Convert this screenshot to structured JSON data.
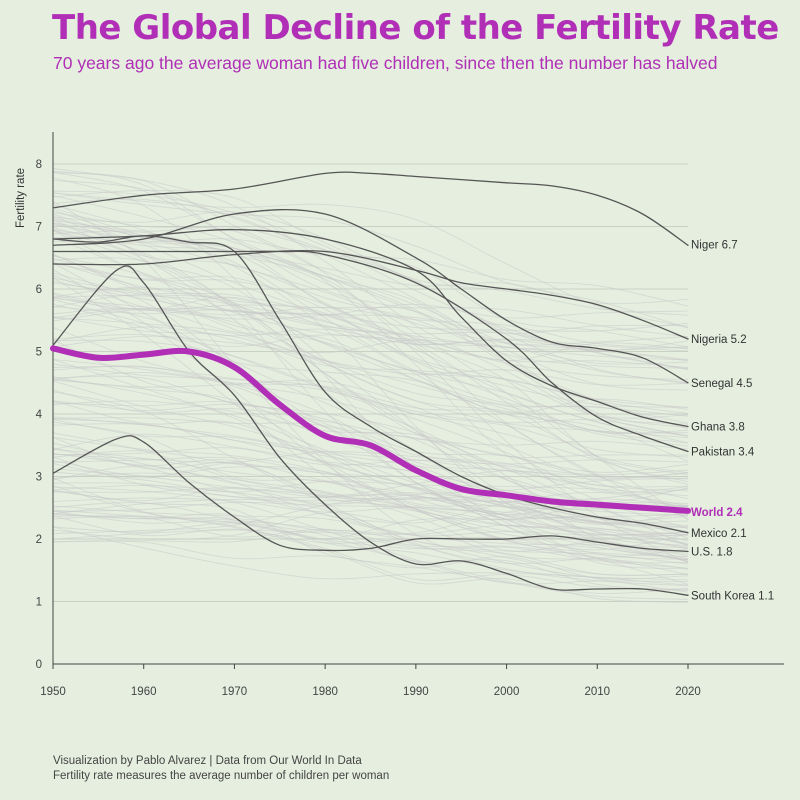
{
  "header": {
    "title": "The Global Decline of the Fertility Rate",
    "subtitle": "70 years ago the average woman had five children, since then the number has halved"
  },
  "footer": {
    "credit": "Visualization by Pablo Alvarez | Data from Our World In Data",
    "note": "Fertility rate measures the average number of children per woman"
  },
  "colors": {
    "background": "#e5eedf",
    "highlight": "#b02fb6",
    "country_line": "#555555",
    "background_lines": "#c9c9c9",
    "grid": "#bfc7bb"
  },
  "chart_data": {
    "type": "line",
    "title": "The Global Decline of the Fertility Rate",
    "subtitle": "70 years ago the average woman had five children, since then the number has halved",
    "xlabel": "",
    "ylabel": "Fertility rate",
    "xlim": [
      1950,
      2020
    ],
    "ylim": [
      0,
      8
    ],
    "xticks": [
      1950,
      1960,
      1970,
      1980,
      1990,
      2000,
      2010,
      2020
    ],
    "yticks": [
      0,
      1,
      2,
      3,
      4,
      5,
      6,
      7,
      8
    ],
    "grid": "horizontal",
    "background_series_note": "many unlabeled grey country lines",
    "series": [
      {
        "name": "Niger",
        "label": "Niger 6.7",
        "style": "country",
        "x": [
          1950,
          1960,
          1970,
          1980,
          1985,
          1990,
          2000,
          2005,
          2010,
          2015,
          2020
        ],
        "y": [
          7.3,
          7.5,
          7.6,
          7.85,
          7.85,
          7.8,
          7.7,
          7.65,
          7.5,
          7.2,
          6.7
        ]
      },
      {
        "name": "Nigeria",
        "label": "Nigeria 5.2",
        "style": "country",
        "x": [
          1950,
          1960,
          1970,
          1980,
          1990,
          1995,
          2000,
          2005,
          2010,
          2015,
          2020
        ],
        "y": [
          6.4,
          6.4,
          6.55,
          6.6,
          6.3,
          6.1,
          6.0,
          5.9,
          5.75,
          5.5,
          5.2
        ]
      },
      {
        "name": "Senegal",
        "label": "Senegal 4.5",
        "style": "country",
        "x": [
          1950,
          1960,
          1970,
          1980,
          1990,
          1995,
          2000,
          2005,
          2010,
          2015,
          2020
        ],
        "y": [
          6.7,
          6.8,
          7.2,
          7.2,
          6.5,
          6.0,
          5.5,
          5.15,
          5.05,
          4.9,
          4.5
        ]
      },
      {
        "name": "Ghana",
        "label": "Ghana 3.8",
        "style": "country",
        "x": [
          1950,
          1960,
          1970,
          1980,
          1990,
          1995,
          2000,
          2005,
          2010,
          2015,
          2020
        ],
        "y": [
          6.8,
          6.85,
          6.95,
          6.8,
          6.3,
          5.55,
          4.85,
          4.45,
          4.2,
          3.95,
          3.8
        ]
      },
      {
        "name": "Pakistan",
        "label": "Pakistan 3.4",
        "style": "country",
        "x": [
          1950,
          1960,
          1970,
          1975,
          1980,
          1990,
          2000,
          2005,
          2010,
          2015,
          2020
        ],
        "y": [
          6.6,
          6.6,
          6.6,
          6.6,
          6.55,
          6.1,
          5.2,
          4.5,
          3.95,
          3.65,
          3.4
        ]
      },
      {
        "name": "Mexico",
        "label": "Mexico 2.1",
        "style": "country",
        "x": [
          1950,
          1955,
          1960,
          1965,
          1970,
          1975,
          1980,
          1985,
          1990,
          1995,
          2000,
          2005,
          2010,
          2015,
          2020
        ],
        "y": [
          6.8,
          6.75,
          6.85,
          6.75,
          6.6,
          5.5,
          4.35,
          3.8,
          3.4,
          3.0,
          2.7,
          2.5,
          2.35,
          2.25,
          2.1
        ]
      },
      {
        "name": "U.S.",
        "label": "U.S. 1.8",
        "style": "country",
        "x": [
          1950,
          1957,
          1960,
          1965,
          1970,
          1975,
          1980,
          1985,
          1990,
          1995,
          2000,
          2005,
          2010,
          2015,
          2020
        ],
        "y": [
          3.05,
          3.6,
          3.55,
          2.9,
          2.35,
          1.9,
          1.82,
          1.85,
          2.0,
          2.0,
          2.0,
          2.05,
          1.95,
          1.85,
          1.8
        ]
      },
      {
        "name": "South Korea",
        "label": "South Korea 1.1",
        "style": "country",
        "x": [
          1950,
          1957,
          1960,
          1965,
          1970,
          1975,
          1980,
          1985,
          1990,
          1995,
          2000,
          2005,
          2010,
          2015,
          2020
        ],
        "y": [
          5.1,
          6.3,
          6.1,
          5.0,
          4.3,
          3.3,
          2.55,
          1.95,
          1.6,
          1.65,
          1.45,
          1.2,
          1.2,
          1.2,
          1.1
        ]
      },
      {
        "name": "World",
        "label": "World 2.4",
        "style": "highlight",
        "x": [
          1950,
          1955,
          1960,
          1965,
          1970,
          1975,
          1980,
          1985,
          1990,
          1995,
          2000,
          2005,
          2010,
          2015,
          2020
        ],
        "y": [
          5.05,
          4.9,
          4.95,
          5.0,
          4.75,
          4.15,
          3.65,
          3.5,
          3.1,
          2.8,
          2.7,
          2.6,
          2.55,
          2.5,
          2.45
        ]
      }
    ]
  }
}
